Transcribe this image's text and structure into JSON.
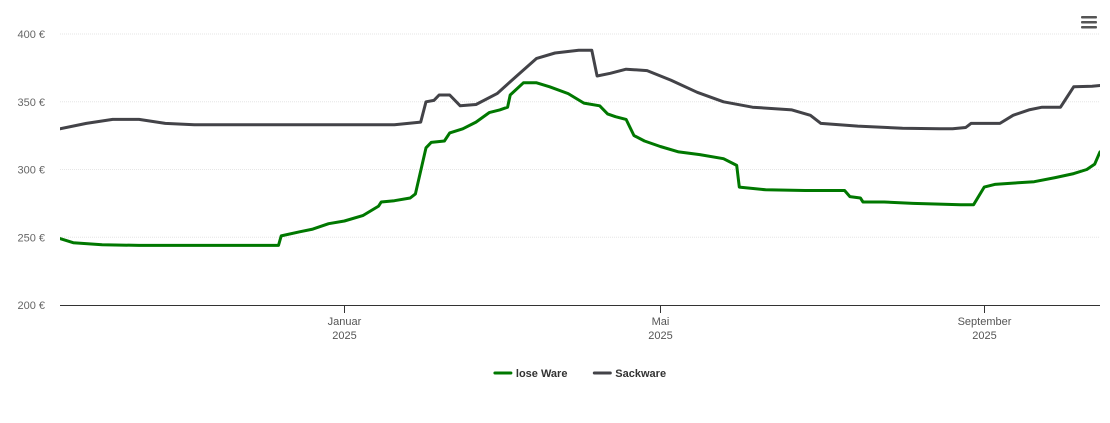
{
  "menu": {
    "icon": "hamburger-menu-icon"
  },
  "chart_data": {
    "type": "line",
    "title": "",
    "xlabel": "",
    "ylabel": "",
    "ylim": [
      200,
      400
    ],
    "xlim": [
      "2024-09-15",
      "2025-10-15"
    ],
    "y_ticks": [
      {
        "value": 200,
        "label": "200 €"
      },
      {
        "value": 250,
        "label": "250 €"
      },
      {
        "value": 300,
        "label": "300 €"
      },
      {
        "value": 350,
        "label": "350 €"
      },
      {
        "value": 400,
        "label": "400 €"
      }
    ],
    "x_ticks": [
      {
        "date": "2025-01-01",
        "label": "Januar",
        "year": "2025"
      },
      {
        "date": "2025-05-01",
        "label": "Mai",
        "year": "2025"
      },
      {
        "date": "2025-09-01",
        "label": "September",
        "year": "2025"
      }
    ],
    "grid": true,
    "legend_position": "bottom-center",
    "series": [
      {
        "name": "lose Ware",
        "color": "#007800",
        "points": [
          [
            "2024-09-15",
            249
          ],
          [
            "2024-09-20",
            246
          ],
          [
            "2024-10-01",
            244.5
          ],
          [
            "2024-10-15",
            244
          ],
          [
            "2024-11-15",
            244
          ],
          [
            "2024-12-07",
            244
          ],
          [
            "2024-12-08",
            251
          ],
          [
            "2024-12-15",
            254
          ],
          [
            "2024-12-20",
            256
          ],
          [
            "2024-12-26",
            260
          ],
          [
            "2025-01-01",
            262
          ],
          [
            "2025-01-08",
            266
          ],
          [
            "2025-01-14",
            273
          ],
          [
            "2025-01-15",
            276
          ],
          [
            "2025-01-20",
            277
          ],
          [
            "2025-01-26",
            279
          ],
          [
            "2025-01-28",
            282
          ],
          [
            "2025-02-01",
            316
          ],
          [
            "2025-02-03",
            320
          ],
          [
            "2025-02-08",
            321
          ],
          [
            "2025-02-10",
            327
          ],
          [
            "2025-02-15",
            330
          ],
          [
            "2025-02-20",
            335
          ],
          [
            "2025-02-25",
            342
          ],
          [
            "2025-03-01",
            344
          ],
          [
            "2025-03-04",
            346
          ],
          [
            "2025-03-05",
            355
          ],
          [
            "2025-03-10",
            364
          ],
          [
            "2025-03-15",
            364
          ],
          [
            "2025-03-20",
            361
          ],
          [
            "2025-03-27",
            356
          ],
          [
            "2025-04-02",
            349
          ],
          [
            "2025-04-08",
            347
          ],
          [
            "2025-04-11",
            341
          ],
          [
            "2025-04-14",
            339
          ],
          [
            "2025-04-18",
            337
          ],
          [
            "2025-04-21",
            325
          ],
          [
            "2025-04-25",
            321
          ],
          [
            "2025-05-01",
            317
          ],
          [
            "2025-05-08",
            313
          ],
          [
            "2025-05-16",
            311
          ],
          [
            "2025-05-25",
            308
          ],
          [
            "2025-05-30",
            303
          ],
          [
            "2025-05-31",
            287
          ],
          [
            "2025-06-10",
            285
          ],
          [
            "2025-06-25",
            284.5
          ],
          [
            "2025-07-10",
            284.5
          ],
          [
            "2025-07-12",
            280
          ],
          [
            "2025-07-16",
            279
          ],
          [
            "2025-07-17",
            276
          ],
          [
            "2025-07-25",
            276
          ],
          [
            "2025-08-05",
            275
          ],
          [
            "2025-08-15",
            274.5
          ],
          [
            "2025-08-23",
            274
          ],
          [
            "2025-08-28",
            274
          ],
          [
            "2025-09-01",
            287
          ],
          [
            "2025-09-05",
            289
          ],
          [
            "2025-09-12",
            290
          ],
          [
            "2025-09-20",
            291
          ],
          [
            "2025-09-28",
            294
          ],
          [
            "2025-10-05",
            297
          ],
          [
            "2025-10-10",
            300
          ],
          [
            "2025-10-13",
            304
          ],
          [
            "2025-10-15",
            313
          ]
        ]
      },
      {
        "name": "Sackware",
        "color": "#434348",
        "points": [
          [
            "2024-09-15",
            330
          ],
          [
            "2024-09-25",
            334
          ],
          [
            "2024-10-05",
            337
          ],
          [
            "2024-10-15",
            337
          ],
          [
            "2024-10-25",
            334
          ],
          [
            "2024-11-05",
            333
          ],
          [
            "2024-11-20",
            333
          ],
          [
            "2024-12-10",
            333
          ],
          [
            "2025-01-01",
            333
          ],
          [
            "2025-01-20",
            333
          ],
          [
            "2025-01-30",
            335
          ],
          [
            "2025-02-01",
            350
          ],
          [
            "2025-02-04",
            351
          ],
          [
            "2025-02-06",
            355
          ],
          [
            "2025-02-10",
            355
          ],
          [
            "2025-02-14",
            347
          ],
          [
            "2025-02-20",
            348
          ],
          [
            "2025-02-28",
            356
          ],
          [
            "2025-03-08",
            370
          ],
          [
            "2025-03-15",
            382
          ],
          [
            "2025-03-22",
            386
          ],
          [
            "2025-03-31",
            388
          ],
          [
            "2025-04-05",
            388
          ],
          [
            "2025-04-07",
            369
          ],
          [
            "2025-04-12",
            371
          ],
          [
            "2025-04-18",
            374
          ],
          [
            "2025-04-26",
            373
          ],
          [
            "2025-05-05",
            366
          ],
          [
            "2025-05-15",
            357
          ],
          [
            "2025-05-25",
            350
          ],
          [
            "2025-06-05",
            346
          ],
          [
            "2025-06-20",
            344
          ],
          [
            "2025-06-27",
            340
          ],
          [
            "2025-07-01",
            334
          ],
          [
            "2025-07-15",
            332
          ],
          [
            "2025-08-01",
            330.5
          ],
          [
            "2025-08-15",
            330
          ],
          [
            "2025-08-20",
            330
          ],
          [
            "2025-08-25",
            331
          ],
          [
            "2025-08-27",
            334
          ],
          [
            "2025-09-07",
            334
          ],
          [
            "2025-09-12",
            340
          ],
          [
            "2025-09-18",
            344
          ],
          [
            "2025-09-23",
            346
          ],
          [
            "2025-09-30",
            346
          ],
          [
            "2025-10-02",
            352
          ],
          [
            "2025-10-05",
            361
          ],
          [
            "2025-10-12",
            361.5
          ],
          [
            "2025-10-15",
            362
          ]
        ]
      }
    ]
  }
}
